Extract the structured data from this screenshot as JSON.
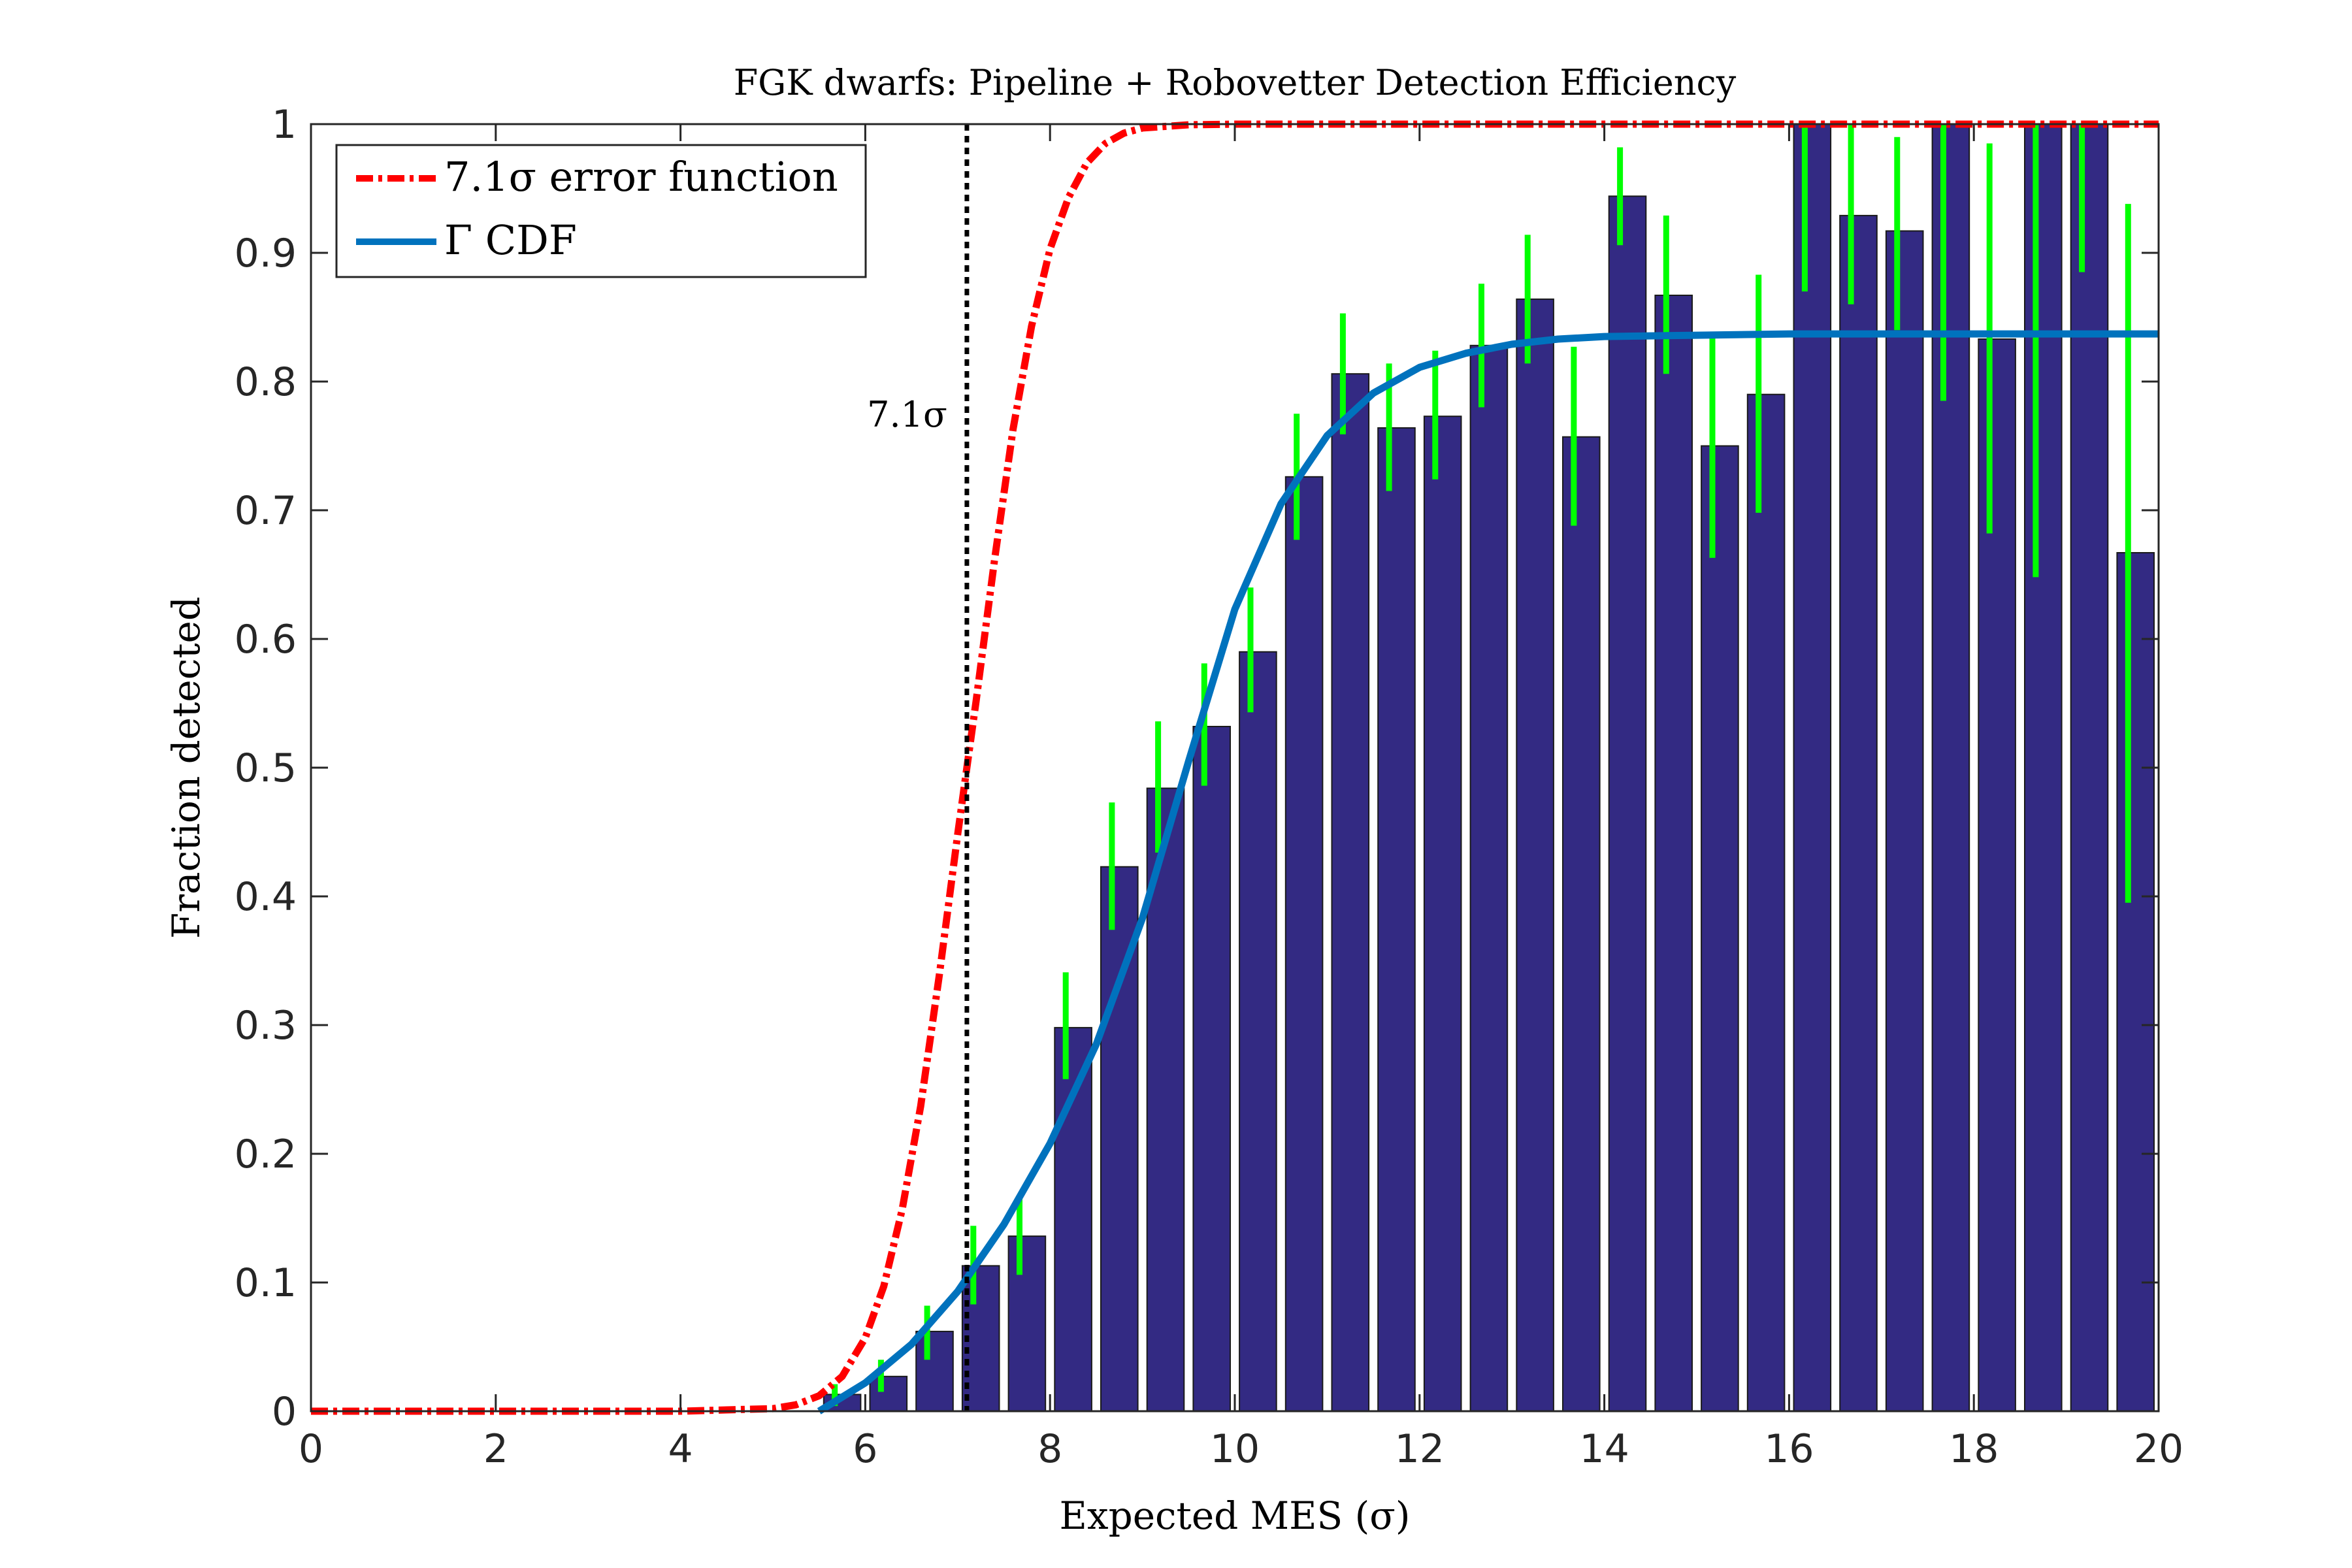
{
  "chart_data": {
    "type": "bar",
    "title": "FGK dwarfs: Pipeline + Robovetter Detection Efficiency",
    "xlabel": "Expected MES (σ)",
    "ylabel": "Fraction detected",
    "xlim": [
      0,
      20
    ],
    "ylim": [
      0,
      1
    ],
    "xticks": [
      "0",
      "2",
      "4",
      "6",
      "8",
      "10",
      "12",
      "14",
      "16",
      "18",
      "20"
    ],
    "yticks": [
      "0",
      "0.1",
      "0.2",
      "0.3",
      "0.4",
      "0.5",
      "0.6",
      "0.7",
      "0.8",
      "0.9",
      "1"
    ],
    "grid": false,
    "legend_position": "top-left",
    "bar_color": "#332A83",
    "errorbar_color": "#00FF00",
    "bars": {
      "x": [
        5.75,
        6.25,
        6.75,
        7.25,
        7.75,
        8.25,
        8.75,
        9.25,
        9.75,
        10.25,
        10.75,
        11.25,
        11.75,
        12.25,
        12.75,
        13.25,
        13.75,
        14.25,
        14.75,
        15.25,
        15.75,
        16.25,
        16.75,
        17.25,
        17.75,
        18.25,
        18.75,
        19.25,
        19.75
      ],
      "values": [
        0.013,
        0.027,
        0.062,
        0.113,
        0.136,
        0.298,
        0.423,
        0.484,
        0.532,
        0.59,
        0.726,
        0.806,
        0.764,
        0.773,
        0.828,
        0.864,
        0.757,
        0.944,
        0.867,
        0.75,
        0.79,
        1.0,
        0.929,
        0.917,
        1.0,
        0.833,
        1.0,
        1.0,
        0.667
      ],
      "err_low": [
        0.004,
        0.015,
        0.04,
        0.083,
        0.106,
        0.258,
        0.374,
        0.434,
        0.486,
        0.543,
        0.677,
        0.759,
        0.715,
        0.724,
        0.78,
        0.814,
        0.688,
        0.906,
        0.806,
        0.663,
        0.698,
        0.87,
        0.86,
        0.84,
        0.785,
        0.682,
        0.648,
        0.885,
        0.395
      ],
      "err_high": [
        0.021,
        0.04,
        0.082,
        0.144,
        0.167,
        0.341,
        0.473,
        0.536,
        0.581,
        0.64,
        0.775,
        0.853,
        0.814,
        0.824,
        0.876,
        0.914,
        0.827,
        0.982,
        0.929,
        0.838,
        0.883,
        1.0,
        1.0,
        0.99,
        1.0,
        0.985,
        1.0,
        1.0,
        0.938
      ]
    },
    "series": [
      {
        "name": "7.1σ error function",
        "type": "line",
        "color": "#FF0000",
        "style": "dash-dot",
        "x": [
          0,
          4,
          4.5,
          5,
          5.25,
          5.5,
          5.75,
          6,
          6.2,
          6.4,
          6.6,
          6.8,
          7.0,
          7.1,
          7.2,
          7.4,
          7.6,
          7.8,
          8.0,
          8.2,
          8.4,
          8.6,
          8.8,
          9.0,
          9.5,
          10,
          20
        ],
        "values": [
          0,
          0.0,
          0.001,
          0.002,
          0.005,
          0.012,
          0.027,
          0.057,
          0.097,
          0.157,
          0.237,
          0.338,
          0.448,
          0.5,
          0.552,
          0.662,
          0.763,
          0.843,
          0.903,
          0.943,
          0.97,
          0.985,
          0.993,
          0.997,
          0.9995,
          1.0,
          1.0
        ]
      },
      {
        "name": "Γ CDF",
        "type": "line",
        "color": "#0072BD",
        "style": "solid",
        "x": [
          5.5,
          6,
          6.5,
          7,
          7.5,
          8,
          8.5,
          9,
          9.5,
          10,
          10.5,
          11,
          11.5,
          12,
          12.5,
          13,
          13.5,
          14,
          15,
          16,
          17,
          18,
          19,
          20
        ],
        "values": [
          0.0,
          0.022,
          0.052,
          0.093,
          0.145,
          0.208,
          0.285,
          0.383,
          0.505,
          0.623,
          0.705,
          0.758,
          0.791,
          0.811,
          0.822,
          0.829,
          0.833,
          0.835,
          0.836,
          0.837,
          0.837,
          0.837,
          0.837,
          0.837
        ]
      }
    ],
    "annotations": [
      {
        "type": "vline",
        "x": 7.1,
        "color": "#000000",
        "style": "dotted",
        "label": "7.1σ",
        "label_y": 0.77
      }
    ]
  }
}
